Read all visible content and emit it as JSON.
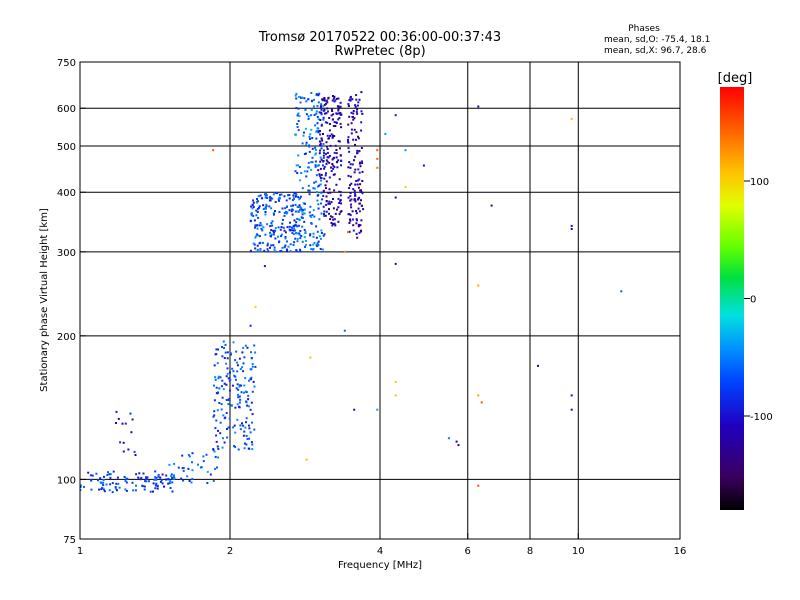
{
  "chart_data": {
    "type": "scatter",
    "title": "Tromsø 20170522 00:36:00-00:37:43",
    "subtitle": "RwPretec (8p)",
    "stats": {
      "heading": "Phases",
      "line_o": "mean, sd,O: -75.4, 18.1",
      "line_x": "mean, sd,X:  96.7, 28.6"
    },
    "xlabel": "Frequency [MHz]",
    "ylabel": "Stationary phase Virtual Height [km]",
    "x_scale": "log",
    "y_scale": "log",
    "xlim": [
      1,
      16
    ],
    "ylim": [
      75,
      750
    ],
    "x_ticks": [
      1,
      2,
      4,
      6,
      8,
      10,
      16
    ],
    "x_tick_labels": [
      "1",
      "2",
      "4",
      "6",
      "8",
      "10",
      "16"
    ],
    "x_grid": [
      2,
      4,
      6,
      8,
      10
    ],
    "y_ticks": [
      75,
      100,
      200,
      300,
      400,
      500,
      600,
      750
    ],
    "y_tick_labels": [
      "75",
      "100",
      "200",
      "300",
      "400",
      "500",
      "600",
      "750"
    ],
    "y_grid": [
      100,
      200,
      300,
      400,
      500,
      600
    ],
    "grid": true,
    "colorbar": {
      "label": "[deg]",
      "range": [
        -180,
        180
      ],
      "ticks": [
        100,
        0,
        -100
      ],
      "tick_labels": [
        "100",
        "0",
        "-100"
      ]
    },
    "point_color": "#2a7fff",
    "clusters": [
      {
        "x": [
          1.0,
          1.55
        ],
        "y": [
          94,
          104
        ],
        "phase": -75,
        "count": 110
      },
      {
        "x": [
          1.5,
          1.9
        ],
        "y": [
          98,
          115
        ],
        "phase": -60,
        "count": 40
      },
      {
        "x": [
          1.18,
          1.3
        ],
        "y": [
          108,
          140
        ],
        "phase": -95,
        "count": 14
      },
      {
        "x": [
          1.85,
          2.25
        ],
        "y": [
          115,
          195
        ],
        "phase": -70,
        "count": 180
      },
      {
        "x": [
          2.2,
          2.8
        ],
        "y": [
          300,
          400
        ],
        "phase": -70,
        "count": 220
      },
      {
        "x": [
          2.7,
          3.1
        ],
        "y": [
          300,
          650
        ],
        "phase": -60,
        "count": 220
      },
      {
        "x": [
          3.0,
          3.35
        ],
        "y": [
          340,
          640
        ],
        "phase": -115,
        "count": 200
      },
      {
        "x": [
          3.45,
          3.7
        ],
        "y": [
          320,
          650
        ],
        "phase": -120,
        "count": 140
      }
    ],
    "points": [
      {
        "x": 1.85,
        "y": 490,
        "phase": 150
      },
      {
        "x": 2.35,
        "y": 280,
        "phase": -100
      },
      {
        "x": 2.25,
        "y": 230,
        "phase": 100
      },
      {
        "x": 2.2,
        "y": 210,
        "phase": -90
      },
      {
        "x": 2.9,
        "y": 180,
        "phase": 110
      },
      {
        "x": 2.85,
        "y": 110,
        "phase": 110
      },
      {
        "x": 3.4,
        "y": 300,
        "phase": 130
      },
      {
        "x": 3.45,
        "y": 330,
        "phase": 140
      },
      {
        "x": 3.4,
        "y": 205,
        "phase": -60
      },
      {
        "x": 3.55,
        "y": 140,
        "phase": -110
      },
      {
        "x": 3.95,
        "y": 470,
        "phase": 150
      },
      {
        "x": 3.95,
        "y": 450,
        "phase": 140
      },
      {
        "x": 3.95,
        "y": 490,
        "phase": 150
      },
      {
        "x": 3.95,
        "y": 140,
        "phase": -40
      },
      {
        "x": 4.1,
        "y": 530,
        "phase": -40
      },
      {
        "x": 4.3,
        "y": 580,
        "phase": -100
      },
      {
        "x": 4.3,
        "y": 390,
        "phase": -110
      },
      {
        "x": 4.3,
        "y": 283,
        "phase": -120
      },
      {
        "x": 4.3,
        "y": 160,
        "phase": 100
      },
      {
        "x": 4.3,
        "y": 150,
        "phase": 110
      },
      {
        "x": 4.5,
        "y": 490,
        "phase": -40
      },
      {
        "x": 4.5,
        "y": 410,
        "phase": 100
      },
      {
        "x": 4.9,
        "y": 455,
        "phase": -110
      },
      {
        "x": 5.5,
        "y": 122,
        "phase": -50
      },
      {
        "x": 5.7,
        "y": 120,
        "phase": -120
      },
      {
        "x": 5.75,
        "y": 118,
        "phase": -120
      },
      {
        "x": 6.3,
        "y": 605,
        "phase": -120
      },
      {
        "x": 6.3,
        "y": 255,
        "phase": 120
      },
      {
        "x": 6.3,
        "y": 150,
        "phase": 120
      },
      {
        "x": 6.4,
        "y": 145,
        "phase": 150
      },
      {
        "x": 6.3,
        "y": 97,
        "phase": 150
      },
      {
        "x": 6.7,
        "y": 375,
        "phase": -120
      },
      {
        "x": 8.3,
        "y": 173,
        "phase": -120
      },
      {
        "x": 9.7,
        "y": 570,
        "phase": 110
      },
      {
        "x": 9.7,
        "y": 340,
        "phase": -120
      },
      {
        "x": 9.7,
        "y": 335,
        "phase": -120
      },
      {
        "x": 9.7,
        "y": 150,
        "phase": -100
      },
      {
        "x": 9.7,
        "y": 140,
        "phase": -110
      },
      {
        "x": 12.2,
        "y": 248,
        "phase": -60
      }
    ]
  }
}
